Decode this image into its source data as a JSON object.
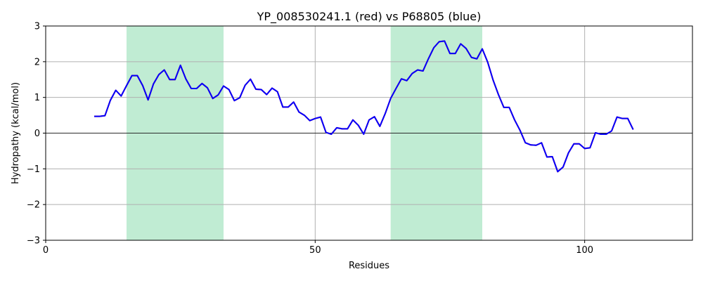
{
  "chart_data": {
    "type": "line",
    "title": "YP_008530241.1 (red) vs P68805 (blue)",
    "xlabel": "Residues",
    "ylabel": "Hydropathy (kcal/mol)",
    "xlim": [
      0,
      120
    ],
    "ylim": [
      -3,
      3
    ],
    "xticks": [
      0,
      50,
      100
    ],
    "yticks": [
      -3,
      -2,
      -1,
      0,
      1,
      2,
      3
    ],
    "xtick_labels": [
      "0",
      "50",
      "100"
    ],
    "ytick_labels": [
      "−3",
      "−2",
      "−1",
      "0",
      "1",
      "2",
      "3"
    ],
    "grid": true,
    "zero_line": true,
    "highlight_regions": [
      {
        "start": 15,
        "end": 33,
        "color": "#c0ecd3"
      },
      {
        "start": 64,
        "end": 81,
        "color": "#c0ecd3"
      }
    ],
    "series": [
      {
        "color": "#ff0000",
        "x": [
          9,
          10,
          11,
          12,
          13,
          14,
          15,
          16,
          17,
          18,
          19,
          20,
          21,
          22,
          23,
          24,
          25,
          26,
          27,
          28,
          29,
          30,
          31,
          32,
          33,
          34,
          35,
          36,
          37,
          38,
          39,
          40,
          41,
          42,
          43,
          44,
          45,
          46,
          47,
          48,
          49,
          50,
          51,
          52,
          53,
          54,
          55,
          56,
          57,
          58,
          59,
          60,
          61,
          62,
          63,
          64,
          65,
          66,
          67,
          68,
          69,
          70,
          71,
          72,
          73,
          74,
          75,
          76,
          77,
          78,
          79,
          80,
          81,
          82,
          83,
          84,
          85,
          86,
          87,
          88,
          89,
          90,
          91,
          92,
          93,
          94,
          95,
          96,
          97,
          98,
          99,
          100,
          101,
          102,
          103,
          104,
          105,
          106,
          107,
          108,
          109
        ],
        "y": [
          0.47,
          0.47,
          0.49,
          0.92,
          1.2,
          1.04,
          1.33,
          1.61,
          1.61,
          1.33,
          0.93,
          1.38,
          1.64,
          1.77,
          1.5,
          1.5,
          1.9,
          1.52,
          1.25,
          1.25,
          1.39,
          1.27,
          0.97,
          1.07,
          1.32,
          1.22,
          0.91,
          0.99,
          1.34,
          1.51,
          1.23,
          1.22,
          1.08,
          1.26,
          1.16,
          0.73,
          0.73,
          0.87,
          0.59,
          0.5,
          0.35,
          0.41,
          0.45,
          0.02,
          -0.03,
          0.15,
          0.12,
          0.12,
          0.37,
          0.22,
          -0.03,
          0.37,
          0.46,
          0.19,
          0.55,
          0.97,
          1.25,
          1.52,
          1.47,
          1.67,
          1.77,
          1.74,
          2.08,
          2.39,
          2.56,
          2.58,
          2.23,
          2.23,
          2.5,
          2.37,
          2.12,
          2.08,
          2.36,
          1.99,
          1.49,
          1.08,
          0.72,
          0.72,
          0.37,
          0.08,
          -0.27,
          -0.33,
          -0.34,
          -0.27,
          -0.67,
          -0.66,
          -1.08,
          -0.95,
          -0.55,
          -0.3,
          -0.3,
          -0.43,
          -0.41,
          0.01,
          -0.03,
          -0.03,
          0.06,
          0.45,
          0.41,
          0.41,
          0.1
        ]
      },
      {
        "color": "#0000ff",
        "x": [
          9,
          10,
          11,
          12,
          13,
          14,
          15,
          16,
          17,
          18,
          19,
          20,
          21,
          22,
          23,
          24,
          25,
          26,
          27,
          28,
          29,
          30,
          31,
          32,
          33,
          34,
          35,
          36,
          37,
          38,
          39,
          40,
          41,
          42,
          43,
          44,
          45,
          46,
          47,
          48,
          49,
          50,
          51,
          52,
          53,
          54,
          55,
          56,
          57,
          58,
          59,
          60,
          61,
          62,
          63,
          64,
          65,
          66,
          67,
          68,
          69,
          70,
          71,
          72,
          73,
          74,
          75,
          76,
          77,
          78,
          79,
          80,
          81,
          82,
          83,
          84,
          85,
          86,
          87,
          88,
          89,
          90,
          91,
          92,
          93,
          94,
          95,
          96,
          97,
          98,
          99,
          100,
          101,
          102,
          103,
          104,
          105,
          106,
          107,
          108,
          109
        ],
        "y": [
          0.47,
          0.47,
          0.49,
          0.92,
          1.2,
          1.04,
          1.33,
          1.61,
          1.61,
          1.33,
          0.93,
          1.38,
          1.64,
          1.77,
          1.5,
          1.5,
          1.9,
          1.52,
          1.25,
          1.25,
          1.39,
          1.27,
          0.97,
          1.07,
          1.32,
          1.22,
          0.91,
          0.99,
          1.34,
          1.51,
          1.23,
          1.22,
          1.08,
          1.26,
          1.16,
          0.73,
          0.73,
          0.87,
          0.59,
          0.5,
          0.35,
          0.41,
          0.45,
          0.02,
          -0.03,
          0.15,
          0.12,
          0.12,
          0.37,
          0.22,
          -0.03,
          0.37,
          0.46,
          0.19,
          0.55,
          0.97,
          1.25,
          1.52,
          1.47,
          1.67,
          1.77,
          1.74,
          2.08,
          2.39,
          2.56,
          2.58,
          2.23,
          2.23,
          2.5,
          2.37,
          2.12,
          2.08,
          2.36,
          1.99,
          1.49,
          1.08,
          0.72,
          0.72,
          0.37,
          0.08,
          -0.27,
          -0.33,
          -0.34,
          -0.27,
          -0.67,
          -0.66,
          -1.08,
          -0.95,
          -0.55,
          -0.3,
          -0.3,
          -0.43,
          -0.41,
          0.01,
          -0.03,
          -0.03,
          0.06,
          0.45,
          0.41,
          0.41,
          0.1
        ]
      }
    ]
  }
}
